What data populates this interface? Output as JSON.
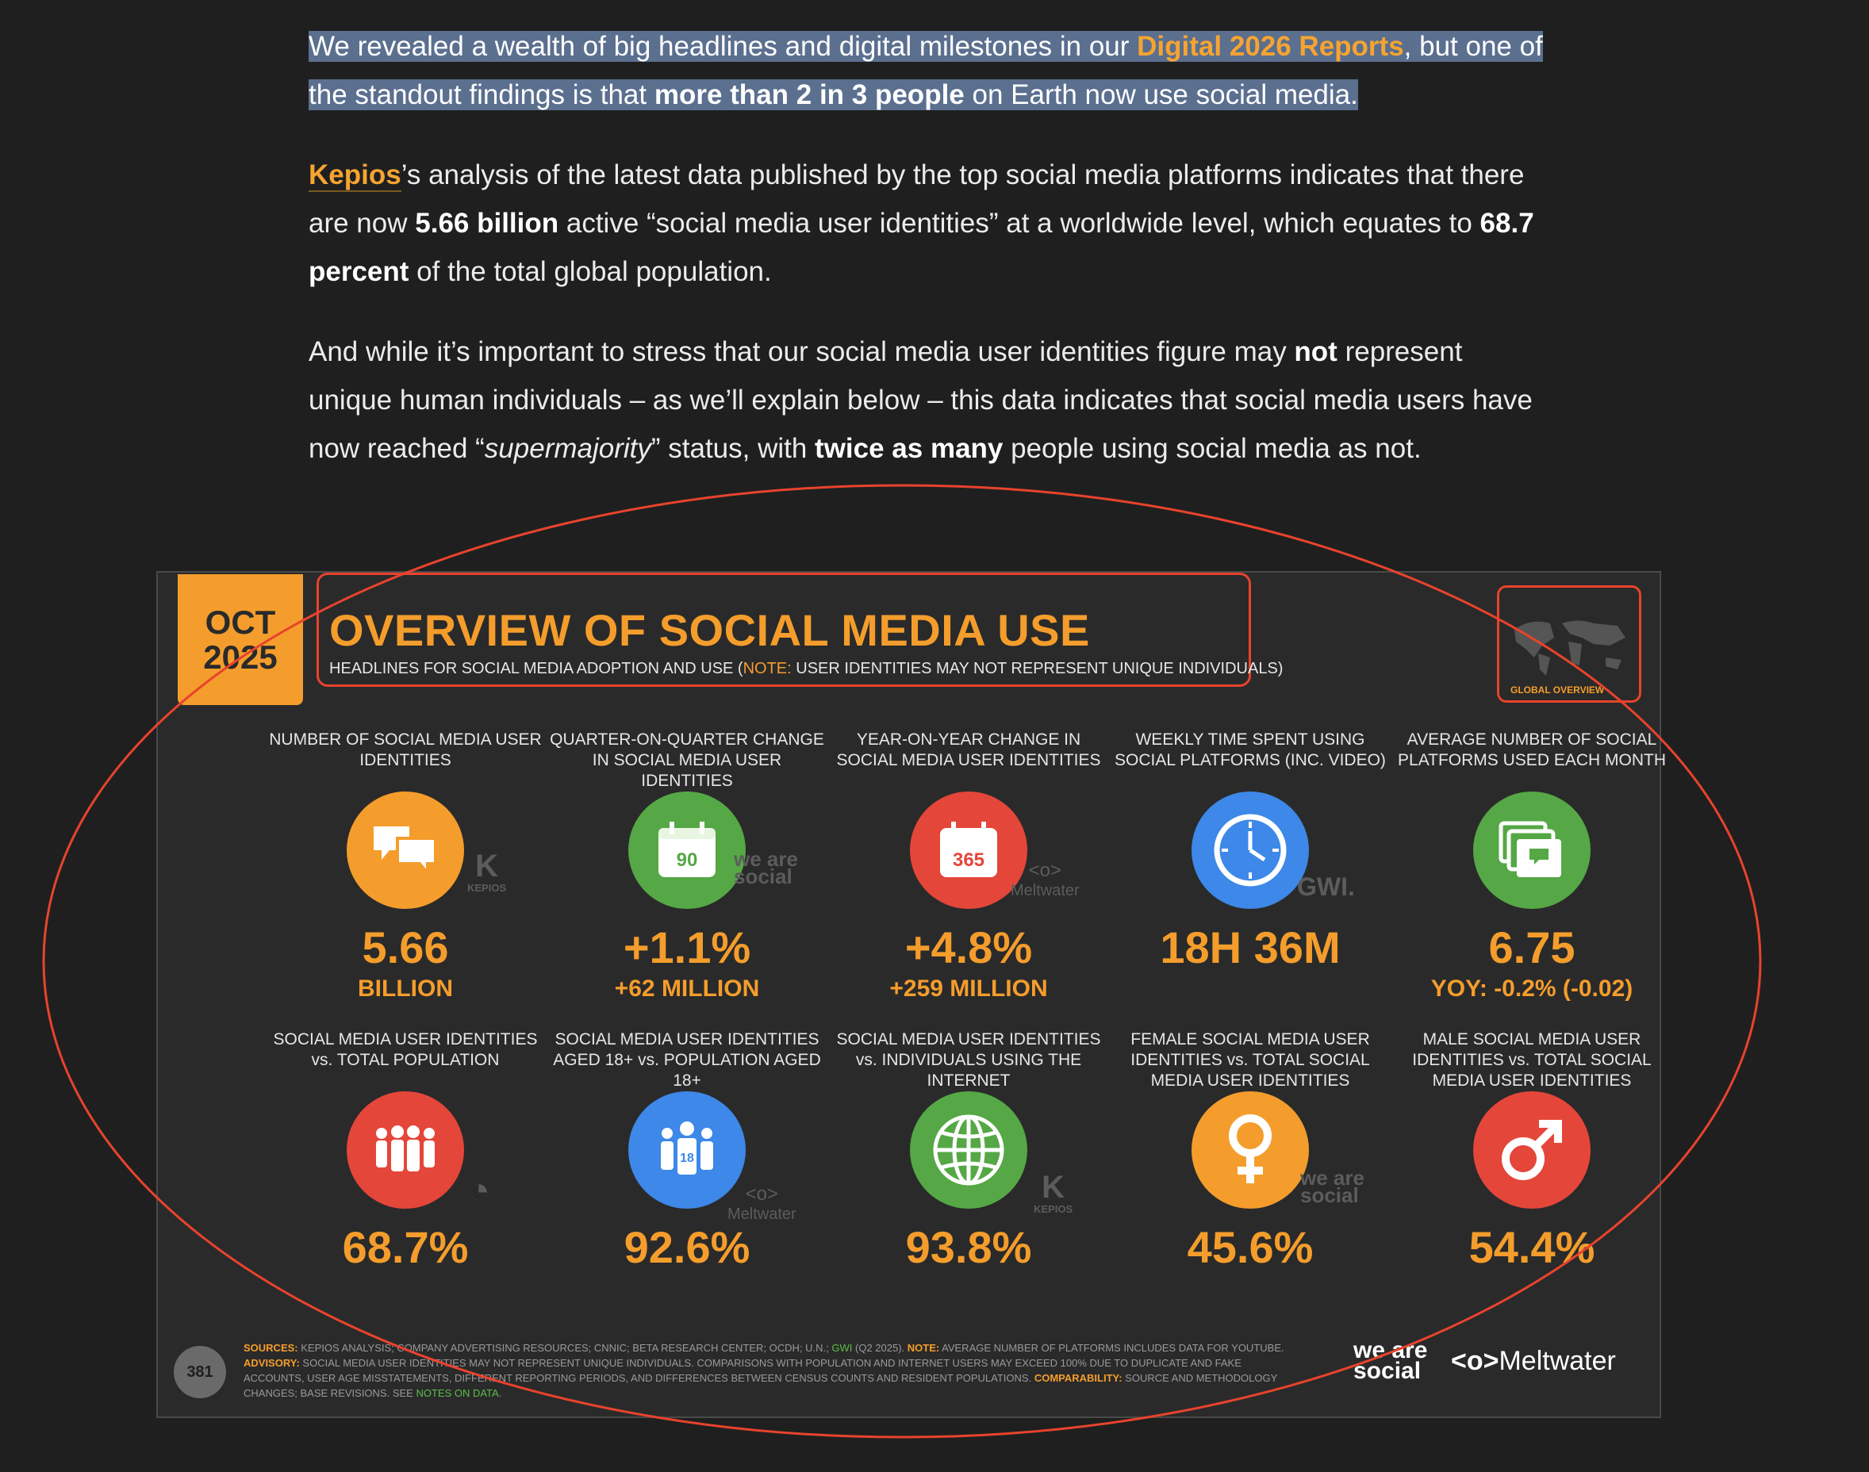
{
  "article": {
    "p1": {
      "a": "We revealed a wealth of big headlines and digital milestones in our ",
      "link": "Digital 2026 Reports",
      "b": ", but one of the standout findings is that ",
      "bold": "more than 2 in 3 people",
      "c": " on Earth now use social media."
    },
    "p2": {
      "link": "Kepios",
      "a": "’s analysis of the latest data published by the top social media platforms indicates that there are now ",
      "bold1": "5.66 billion",
      "b": " active “social media user identities” at a worldwide level, which equates to ",
      "bold2": "68.7 percent",
      "c": " of the total global population."
    },
    "p3": {
      "a": "And while it’s important to stress that our social media user identities figure may ",
      "bold1": "not",
      "b": " represent unique human individuals – as we’ll explain below – this data indicates that social media users have now reached “",
      "ital": "supermajority",
      "c": "” status, with ",
      "bold2": "twice as many",
      "d": " people using social media as not."
    }
  },
  "card": {
    "date_month": "OCT",
    "date_year": "2025",
    "title": "OVERVIEW OF SOCIAL MEDIA USE",
    "subtitle_a": "HEADLINES FOR SOCIAL MEDIA ADOPTION AND USE (",
    "subtitle_note": "NOTE:",
    "subtitle_b": " USER IDENTITIES MAY NOT REPRESENT UNIQUE INDIVIDUALS)",
    "global_label": "GLOBAL OVERVIEW",
    "row1": [
      {
        "label": "NUMBER OF SOCIAL MEDIA USER IDENTITIES",
        "value": "5.66",
        "sub": "BILLION",
        "icon": "chat-bubbles-icon",
        "color": "#f49d2c"
      },
      {
        "label": "QUARTER-ON-QUARTER CHANGE IN SOCIAL MEDIA USER IDENTITIES",
        "value": "+1.1%",
        "sub": "+62 MILLION",
        "icon": "calendar-90-icon",
        "icon_text": "90",
        "color": "#55a845"
      },
      {
        "label": "YEAR-ON-YEAR CHANGE IN SOCIAL MEDIA USER IDENTITIES",
        "value": "+4.8%",
        "sub": "+259 MILLION",
        "icon": "calendar-365-icon",
        "icon_text": "365",
        "color": "#e5463a"
      },
      {
        "label": "WEEKLY TIME SPENT USING SOCIAL PLATFORMS (INC. VIDEO)",
        "value": "18H 36M",
        "sub": "",
        "icon": "clock-icon",
        "color": "#3d88e8"
      },
      {
        "label": "AVERAGE NUMBER OF SOCIAL PLATFORMS USED EACH MONTH",
        "value": "6.75",
        "sub": "YOY: -0.2% (-0.02)",
        "icon": "stacked-windows-icon",
        "color": "#55a845"
      }
    ],
    "row2": [
      {
        "label": "SOCIAL MEDIA USER IDENTITIES vs. TOTAL POPULATION",
        "value": "68.7%",
        "icon": "people-group-icon",
        "color": "#e5463a"
      },
      {
        "label": "SOCIAL MEDIA USER IDENTITIES AGED 18+ vs. POPULATION AGED 18+",
        "value": "92.6%",
        "icon": "adults-18-icon",
        "icon_text": "18",
        "color": "#3d88e8"
      },
      {
        "label": "SOCIAL MEDIA USER IDENTITIES vs. INDIVIDUALS USING THE INTERNET",
        "value": "93.8%",
        "icon": "globe-icon",
        "color": "#55a845"
      },
      {
        "label": "FEMALE SOCIAL MEDIA USER IDENTITIES vs. TOTAL SOCIAL MEDIA USER IDENTITIES",
        "value": "45.6%",
        "icon": "female-symbol-icon",
        "color": "#f49d2c"
      },
      {
        "label": "MALE SOCIAL MEDIA USER IDENTITIES vs. TOTAL SOCIAL MEDIA USER IDENTITIES",
        "value": "54.4%",
        "icon": "male-symbol-icon",
        "color": "#e5463a"
      }
    ],
    "brands": {
      "kepios": "KEPIOS",
      "wearesocial": "we are social",
      "meltwater": "Meltwater",
      "gwi": "GWI."
    },
    "page_number": "381",
    "footer": {
      "sources_k": "SOURCES:",
      "sources_a": " KEPIOS ANALYSIS; COMPANY ADVERTISING RESOURCES; CNNIC; BETA RESEARCH CENTER; OCDH; U.N.; ",
      "sources_gwi": "GWI",
      "sources_b": " (Q2 2025). ",
      "note_k": "NOTE:",
      "note_a": " AVERAGE NUMBER OF PLATFORMS INCLUDES DATA FOR YOUTUBE.",
      "advisory_k": "ADVISORY:",
      "advisory_a": " SOCIAL MEDIA USER IDENTITIES MAY NOT REPRESENT UNIQUE INDIVIDUALS. COMPARISONS WITH POPULATION AND INTERNET USERS MAY EXCEED 100% DUE TO DUPLICATE AND FAKE ACCOUNTS, USER AGE MISSTATEMENTS, DIFFERENT REPORTING PERIODS, AND DIFFERENCES BETWEEN CENSUS COUNTS AND RESIDENT POPULATIONS. ",
      "comparability_k": "COMPARABILITY:",
      "comparability_a": " SOURCE AND METHODOLOGY CHANGES; BASE REVISIONS. SEE ",
      "notes_link": "NOTES ON DATA",
      "end": "."
    },
    "footer_brand1": "we are social",
    "footer_brand2": "Meltwater"
  }
}
